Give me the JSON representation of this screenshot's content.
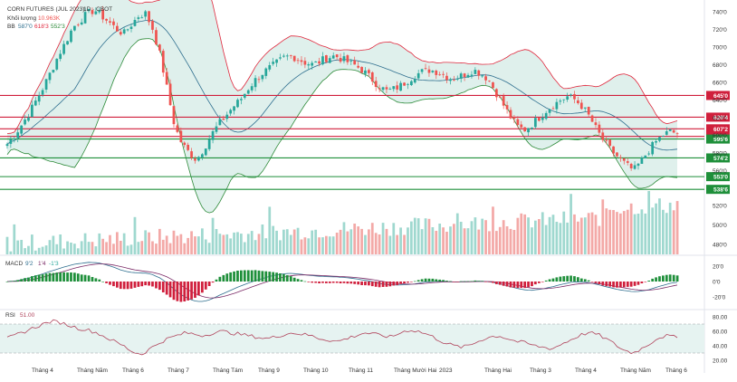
{
  "legend": {
    "symbol": "CORN FUTURES (JUL 2023)",
    "symbol_detail": "1D · CBOT",
    "volume_label": "Khối lượng",
    "volume_value": "10.963K",
    "bb_label": "BB",
    "bb_values": [
      "587'0",
      "618'3",
      "552'3"
    ],
    "macd_label": "MACD",
    "macd_values": [
      "9'2",
      "1'4",
      "-1'3"
    ],
    "rsi_label": "RSI",
    "rsi_value": "51.00"
  },
  "colors": {
    "up": "#26a69a",
    "down": "#ef5350",
    "bb_upper": "#e0283d",
    "bb_basis": "#2f6f8f",
    "bb_lower": "#2e8b3a",
    "bb_fill": "#dff0ec",
    "red_level": "#d01f3c",
    "green_level": "#1e8f3a",
    "rsi_line": "#b0435b",
    "rsi_band": "#e6f3f1"
  },
  "price_axis": {
    "ticks": [
      "740'0",
      "720'0",
      "700'0",
      "680'0",
      "660'0",
      "640'0",
      "620'0",
      "600'0",
      "580'0",
      "560'0"
    ],
    "volume_ticks": [
      "520'0",
      "500'0",
      "480'0"
    ]
  },
  "levels": [
    {
      "value": 645.0,
      "label": "645'0",
      "color": "red"
    },
    {
      "value": 620.4,
      "label": "620'4",
      "color": "red"
    },
    {
      "value": 607.2,
      "label": "607'2",
      "color": "red"
    },
    {
      "value": 598.6,
      "label": "598'6",
      "color": "red"
    },
    {
      "value": 595.6,
      "label": "595'6",
      "color": "green"
    },
    {
      "value": 574.2,
      "label": "574'2",
      "color": "green"
    },
    {
      "value": 553.0,
      "label": "553'0",
      "color": "green"
    },
    {
      "value": 538.6,
      "label": "538'6",
      "color": "green"
    }
  ],
  "macd_axis": {
    "ticks": [
      "20'0",
      "0'0",
      "-20'0"
    ]
  },
  "rsi_axis": {
    "ticks": [
      "80.00",
      "60.00",
      "40.00",
      "20.00"
    ],
    "band": [
      70,
      30
    ]
  },
  "x_axis": {
    "labels": [
      "Tháng 4",
      "Tháng Năm",
      "Tháng 6",
      "Tháng 7",
      "Tháng Tám",
      "Tháng 9",
      "Tháng 10",
      "Tháng 11",
      "Tháng Mười Hai",
      "2023",
      "Tháng Hai",
      "Tháng 3",
      "Tháng 4",
      "Tháng Năm",
      "Tháng 6"
    ]
  },
  "chart_data": {
    "type": "candlestick",
    "instrument": "CORN FUTURES (JUL 2023)",
    "price_range": [
      548,
      745
    ],
    "close_path": [
      590,
      600,
      612,
      625,
      640,
      655,
      672,
      690,
      705,
      722,
      730,
      738,
      742,
      735,
      728,
      720,
      715,
      725,
      735,
      738,
      720,
      690,
      650,
      610,
      590,
      580,
      572,
      585,
      600,
      612,
      622,
      632,
      640,
      652,
      662,
      670,
      676,
      682,
      688,
      690,
      686,
      682,
      680,
      684,
      688,
      690,
      686,
      682,
      678,
      672,
      664,
      656,
      650,
      652,
      656,
      662,
      668,
      672,
      674,
      672,
      668,
      664,
      666,
      670,
      674,
      670,
      664,
      650,
      636,
      622,
      610,
      606,
      612,
      620,
      628,
      634,
      640,
      644,
      640,
      632,
      620,
      605,
      592,
      582,
      574,
      566,
      560,
      570,
      582,
      592,
      600,
      604,
      602
    ],
    "volume_range": [
      470,
      535
    ],
    "macd_range": [
      -25,
      25
    ],
    "rsi_path": [
      50,
      55,
      60,
      65,
      70,
      74,
      72,
      68,
      64,
      62,
      58,
      52,
      46,
      40,
      32,
      28,
      36,
      44,
      50,
      54,
      58,
      56,
      54,
      58,
      60,
      58,
      56,
      54,
      52,
      50,
      52,
      56,
      58,
      56,
      54,
      50,
      48,
      46,
      50,
      54,
      58,
      56,
      54,
      52,
      58,
      62,
      60,
      56,
      50,
      44,
      40,
      38,
      42,
      48,
      52,
      54,
      50,
      46,
      44,
      40,
      38,
      36,
      42,
      48,
      54,
      58,
      56,
      50,
      42,
      34,
      30,
      36,
      44,
      52,
      54,
      51
    ]
  }
}
